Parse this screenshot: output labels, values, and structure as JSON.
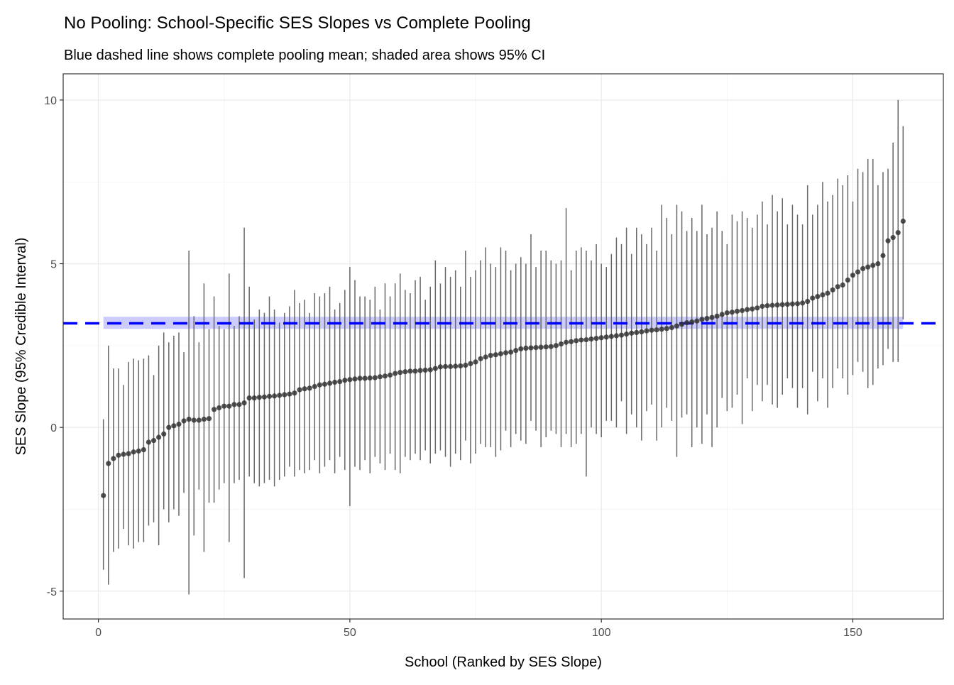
{
  "chart_data": {
    "type": "scatter",
    "title": "No Pooling: School-Specific SES Slopes vs Complete Pooling",
    "subtitle": "Blue dashed line shows complete pooling mean; shaded area shows 95% CI",
    "xlabel": "School (Ranked by SES Slope)",
    "ylabel": "SES Slope (95% Credible Interval)",
    "xlim": [
      -7,
      168
    ],
    "ylim": [
      -5.85,
      10.8
    ],
    "x_ticks": [
      {
        "value": 0,
        "label": "0"
      },
      {
        "value": 50,
        "label": "50"
      },
      {
        "value": 100,
        "label": "100"
      },
      {
        "value": 150,
        "label": "150"
      }
    ],
    "y_ticks": [
      {
        "value": -5,
        "label": "-5"
      },
      {
        "value": 0,
        "label": "0"
      },
      {
        "value": 5,
        "label": "5"
      },
      {
        "value": 10,
        "label": "10"
      }
    ],
    "grid": true,
    "pooled": {
      "mean": 3.18,
      "lower": 3.01,
      "upper": 3.38,
      "color": "#0000ff"
    },
    "point_color": "#333333",
    "errorbar_color": "#666666",
    "estimate": [
      -2.08,
      -1.1,
      -0.95,
      -0.85,
      -0.82,
      -0.8,
      -0.75,
      -0.72,
      -0.68,
      -0.45,
      -0.4,
      -0.3,
      -0.2,
      0.0,
      0.05,
      0.1,
      0.2,
      0.25,
      0.22,
      0.22,
      0.25,
      0.27,
      0.55,
      0.6,
      0.65,
      0.65,
      0.7,
      0.7,
      0.75,
      0.9,
      0.9,
      0.92,
      0.93,
      0.95,
      0.96,
      0.98,
      1.0,
      1.02,
      1.05,
      1.15,
      1.18,
      1.2,
      1.25,
      1.3,
      1.32,
      1.35,
      1.38,
      1.4,
      1.44,
      1.46,
      1.48,
      1.5,
      1.5,
      1.51,
      1.52,
      1.55,
      1.57,
      1.6,
      1.65,
      1.68,
      1.7,
      1.72,
      1.72,
      1.74,
      1.75,
      1.76,
      1.8,
      1.85,
      1.86,
      1.86,
      1.87,
      1.88,
      1.9,
      1.95,
      2.0,
      2.1,
      2.15,
      2.2,
      2.22,
      2.25,
      2.28,
      2.3,
      2.35,
      2.4,
      2.42,
      2.43,
      2.44,
      2.45,
      2.46,
      2.47,
      2.5,
      2.55,
      2.6,
      2.62,
      2.65,
      2.67,
      2.68,
      2.7,
      2.72,
      2.74,
      2.76,
      2.78,
      2.8,
      2.82,
      2.85,
      2.88,
      2.9,
      2.92,
      2.95,
      2.97,
      2.98,
      3.0,
      3.02,
      3.05,
      3.1,
      3.15,
      3.2,
      3.22,
      3.25,
      3.3,
      3.33,
      3.36,
      3.4,
      3.45,
      3.5,
      3.52,
      3.55,
      3.57,
      3.6,
      3.62,
      3.65,
      3.7,
      3.72,
      3.73,
      3.74,
      3.75,
      3.76,
      3.77,
      3.78,
      3.8,
      3.85,
      3.95,
      4.0,
      4.05,
      4.1,
      4.2,
      4.3,
      4.35,
      4.5,
      4.65,
      4.75,
      4.85,
      4.9,
      4.95,
      5.0,
      5.25,
      5.7,
      5.8,
      5.95,
      6.3
    ],
    "lower": [
      -4.35,
      -4.8,
      -3.8,
      -3.7,
      -3.1,
      -3.6,
      -3.7,
      -3.5,
      -3.5,
      -3.0,
      -2.9,
      -3.6,
      -2.5,
      -2.9,
      -2.5,
      -2.7,
      -2.0,
      -5.1,
      -3.3,
      -1.9,
      -3.8,
      -2.3,
      -2.3,
      -1.9,
      -1.7,
      -3.5,
      -1.7,
      -1.6,
      -4.6,
      -1.5,
      -1.7,
      -1.8,
      -1.7,
      -1.6,
      -1.8,
      -1.6,
      -1.5,
      -1.2,
      -1.5,
      -1.3,
      -1.4,
      -1.3,
      -1.0,
      -1.4,
      -1.2,
      -1.0,
      -1.4,
      -0.9,
      -1.3,
      -2.4,
      -1.2,
      -1.3,
      -1.0,
      -1.4,
      -0.9,
      -1.1,
      -1.3,
      -0.8,
      -1.3,
      -1.4,
      -0.9,
      -1.0,
      -0.8,
      -1.0,
      -0.7,
      -1.1,
      -0.8,
      -0.7,
      -0.9,
      -1.2,
      -0.8,
      -1.0,
      -0.4,
      -1.1,
      -0.8,
      -0.5,
      -0.6,
      -0.6,
      -0.9,
      -0.7,
      -0.1,
      -0.6,
      -0.2,
      -0.4,
      -0.5,
      0.2,
      -0.1,
      -0.6,
      -0.3,
      -0.1,
      -0.2,
      -0.6,
      -0.2,
      -0.6,
      -0.5,
      -0.2,
      -1.5,
      0.0,
      -0.2,
      -0.3,
      0.2,
      0.2,
      0.0,
      0.8,
      -0.2,
      0.4,
      0.0,
      -0.4,
      0.5,
      0.7,
      -0.4,
      0.0,
      0.6,
      0.2,
      -0.9,
      0.3,
      0.4,
      -0.6,
      0.0,
      -0.5,
      0.4,
      -0.6,
      0.0,
      0.9,
      0.5,
      0.6,
      1.0,
      0.1,
      1.5,
      0.5,
      1.3,
      0.8,
      1.3,
      0.7,
      0.6,
      1.0,
      1.5,
      1.2,
      0.6,
      1.2,
      0.4,
      1.7,
      0.8,
      1.5,
      0.6,
      1.2,
      1.8,
      1.5,
      1.0,
      1.6,
      2.0,
      1.7,
      1.2,
      1.3,
      1.8,
      1.9,
      2.4,
      2.0,
      2.0,
      3.3
    ],
    "upper": [
      0.25,
      2.5,
      1.8,
      1.8,
      1.3,
      2.0,
      2.1,
      2.05,
      2.1,
      2.2,
      1.6,
      2.5,
      2.9,
      2.6,
      2.8,
      2.9,
      2.3,
      5.4,
      3.4,
      2.6,
      4.4,
      3.0,
      4.0,
      3.1,
      3.0,
      4.7,
      3.1,
      3.4,
      6.1,
      4.3,
      3.3,
      3.6,
      3.5,
      4.0,
      3.6,
      3.2,
      3.5,
      3.7,
      4.2,
      3.8,
      3.9,
      3.5,
      4.1,
      4.0,
      4.1,
      4.3,
      3.6,
      3.8,
      4.2,
      4.9,
      4.5,
      4.0,
      4.0,
      3.9,
      4.3,
      3.6,
      4.4,
      4.0,
      4.4,
      4.7,
      4.2,
      4.1,
      4.5,
      4.6,
      3.9,
      4.3,
      5.1,
      4.4,
      4.9,
      4.6,
      4.8,
      4.3,
      5.4,
      4.6,
      4.8,
      5.1,
      5.5,
      5.0,
      4.9,
      5.5,
      5.4,
      4.8,
      5.0,
      5.2,
      5.0,
      5.9,
      4.9,
      5.4,
      5.4,
      5.1,
      5.0,
      5.1,
      6.7,
      4.8,
      5.4,
      5.5,
      5.4,
      5.1,
      5.6,
      5.0,
      4.9,
      5.3,
      5.8,
      5.6,
      6.1,
      5.3,
      6.1,
      5.9,
      5.6,
      6.1,
      5.4,
      6.8,
      6.4,
      5.9,
      6.8,
      6.6,
      6.0,
      6.4,
      6.0,
      6.8,
      5.9,
      6.1,
      6.6,
      6.0,
      5.6,
      6.5,
      6.3,
      6.6,
      6.4,
      6.1,
      6.5,
      6.9,
      6.2,
      7.1,
      6.6,
      7.0,
      6.2,
      6.8,
      6.5,
      6.2,
      7.4,
      6.5,
      6.8,
      7.5,
      6.9,
      7.1,
      7.6,
      7.4,
      7.7,
      6.9,
      7.9,
      7.8,
      8.2,
      8.2,
      7.4,
      7.8,
      7.9,
      8.7,
      10.0,
      9.2
    ]
  }
}
